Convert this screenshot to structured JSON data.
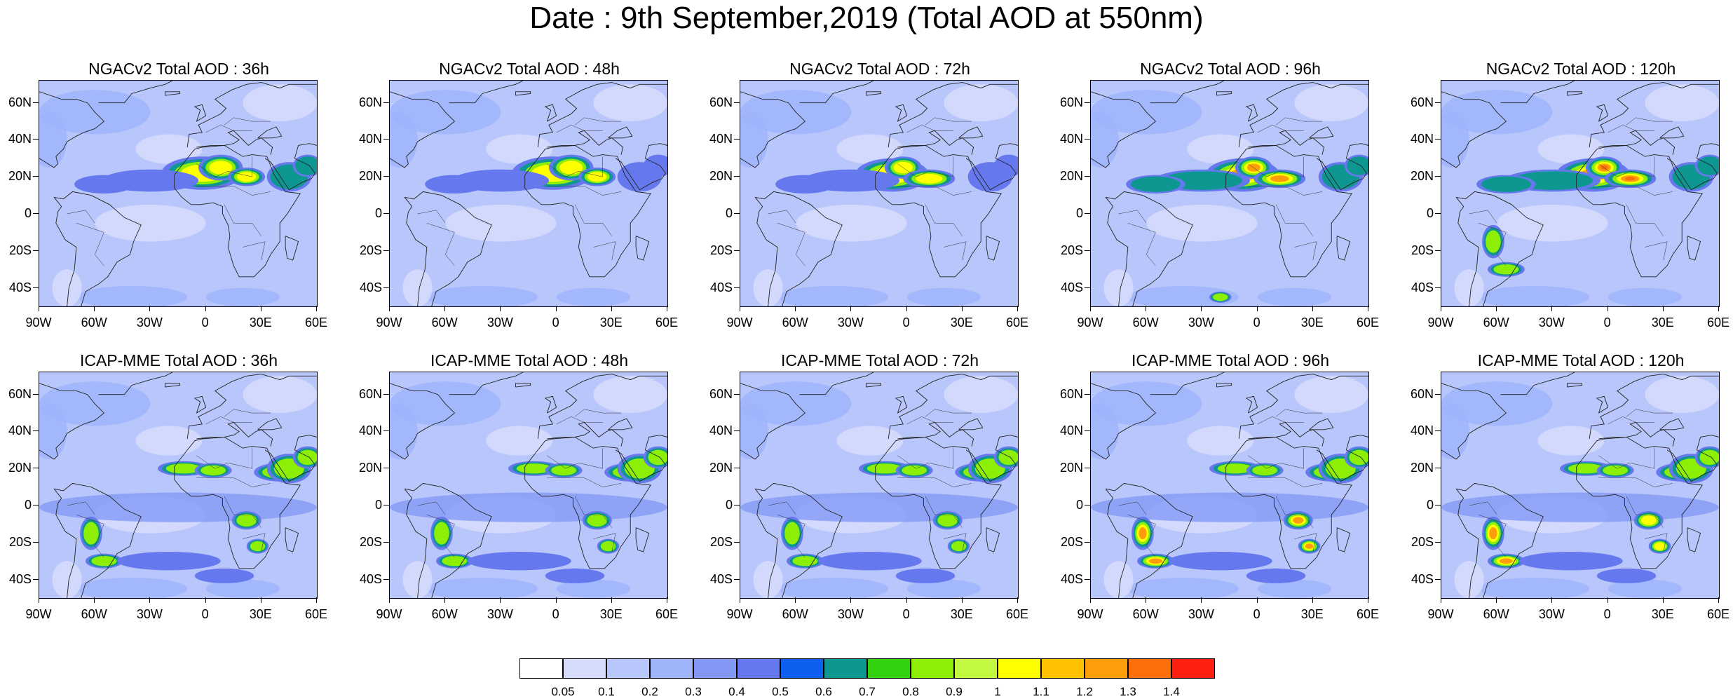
{
  "title": "Date : 9th September,2019 (Total AOD at 550nm)",
  "panels": [
    {
      "title": "NGACv2 Total AOD : 36h",
      "plumes": [
        [
          "sahara",
          1.0
        ],
        [
          "arabia",
          0.6
        ],
        [
          "atlantic",
          0.5
        ]
      ]
    },
    {
      "title": "NGACv2 Total AOD : 48h",
      "plumes": [
        [
          "sahara",
          1.0
        ],
        [
          "arabia",
          0.5
        ],
        [
          "atlantic",
          0.5
        ]
      ]
    },
    {
      "title": "NGACv2 Total AOD : 72h",
      "plumes": [
        [
          "sahara-west",
          1.0
        ],
        [
          "arabia",
          0.5
        ],
        [
          "atlantic",
          0.5
        ]
      ]
    },
    {
      "title": "NGACv2 Total AOD : 96h",
      "plumes": [
        [
          "sahara-west",
          1.3
        ],
        [
          "arabia",
          0.6
        ],
        [
          "atlantic",
          0.6
        ],
        [
          "south-atlantic",
          0.9
        ]
      ]
    },
    {
      "title": "NGACv2 Total AOD : 120h",
      "plumes": [
        [
          "sahara-west",
          1.4
        ],
        [
          "arabia",
          0.6
        ],
        [
          "atlantic",
          0.6
        ],
        [
          "southamerica",
          0.9
        ]
      ]
    },
    {
      "title": "ICAP-MME Total AOD : 36h",
      "plumes": [
        [
          "sahel",
          0.9
        ],
        [
          "arabia",
          0.9
        ],
        [
          "southamerica",
          0.8
        ],
        [
          "africa-south",
          0.8
        ],
        [
          "south-atlantic-band",
          0.5
        ]
      ]
    },
    {
      "title": "ICAP-MME Total AOD : 48h",
      "plumes": [
        [
          "sahel",
          0.9
        ],
        [
          "arabia",
          0.9
        ],
        [
          "southamerica",
          0.8
        ],
        [
          "africa-south",
          0.8
        ],
        [
          "south-atlantic-band",
          0.5
        ]
      ]
    },
    {
      "title": "ICAP-MME Total AOD : 72h",
      "plumes": [
        [
          "sahel",
          0.9
        ],
        [
          "arabia",
          0.9
        ],
        [
          "southamerica",
          0.9
        ],
        [
          "africa-south",
          0.8
        ],
        [
          "south-atlantic-band",
          0.5
        ]
      ]
    },
    {
      "title": "ICAP-MME Total AOD : 96h",
      "plumes": [
        [
          "sahel",
          0.9
        ],
        [
          "arabia",
          0.8
        ],
        [
          "southamerica",
          1.2
        ],
        [
          "africa-south",
          1.2
        ],
        [
          "south-atlantic-band",
          0.5
        ]
      ]
    },
    {
      "title": "ICAP-MME Total AOD : 120h",
      "plumes": [
        [
          "sahel",
          0.8
        ],
        [
          "arabia",
          0.8
        ],
        [
          "southamerica",
          1.2
        ],
        [
          "africa-south",
          1.0
        ],
        [
          "south-atlantic-band",
          0.5
        ]
      ]
    }
  ],
  "axes": {
    "lat_labels": [
      "60N",
      "40N",
      "20N",
      "0",
      "20S",
      "40S"
    ],
    "lat_values": [
      60,
      40,
      20,
      0,
      -20,
      -40
    ],
    "lon_labels": [
      "90W",
      "60W",
      "30W",
      "0",
      "30E",
      "60E"
    ],
    "lon_values": [
      -90,
      -60,
      -30,
      0,
      30,
      60
    ],
    "lat_range": [
      -50,
      72
    ],
    "lon_range": [
      -90,
      60
    ]
  },
  "colorbar": {
    "labels": [
      "0.05",
      "0.1",
      "0.2",
      "0.3",
      "0.4",
      "0.5",
      "0.6",
      "0.7",
      "0.8",
      "0.9",
      "1",
      "1.1",
      "1.2",
      "1.3",
      "1.4"
    ],
    "colors": [
      "#ffffff",
      "#d6dcfc",
      "#b9c6fb",
      "#9fb4fb",
      "#8398f5",
      "#6678ee",
      "#0c5fef",
      "#0e9691",
      "#31d20d",
      "#8dee06",
      "#c2f742",
      "#ffff00",
      "#fec200",
      "#fd9d09",
      "#fd6f0b",
      "#fd2011"
    ]
  }
}
